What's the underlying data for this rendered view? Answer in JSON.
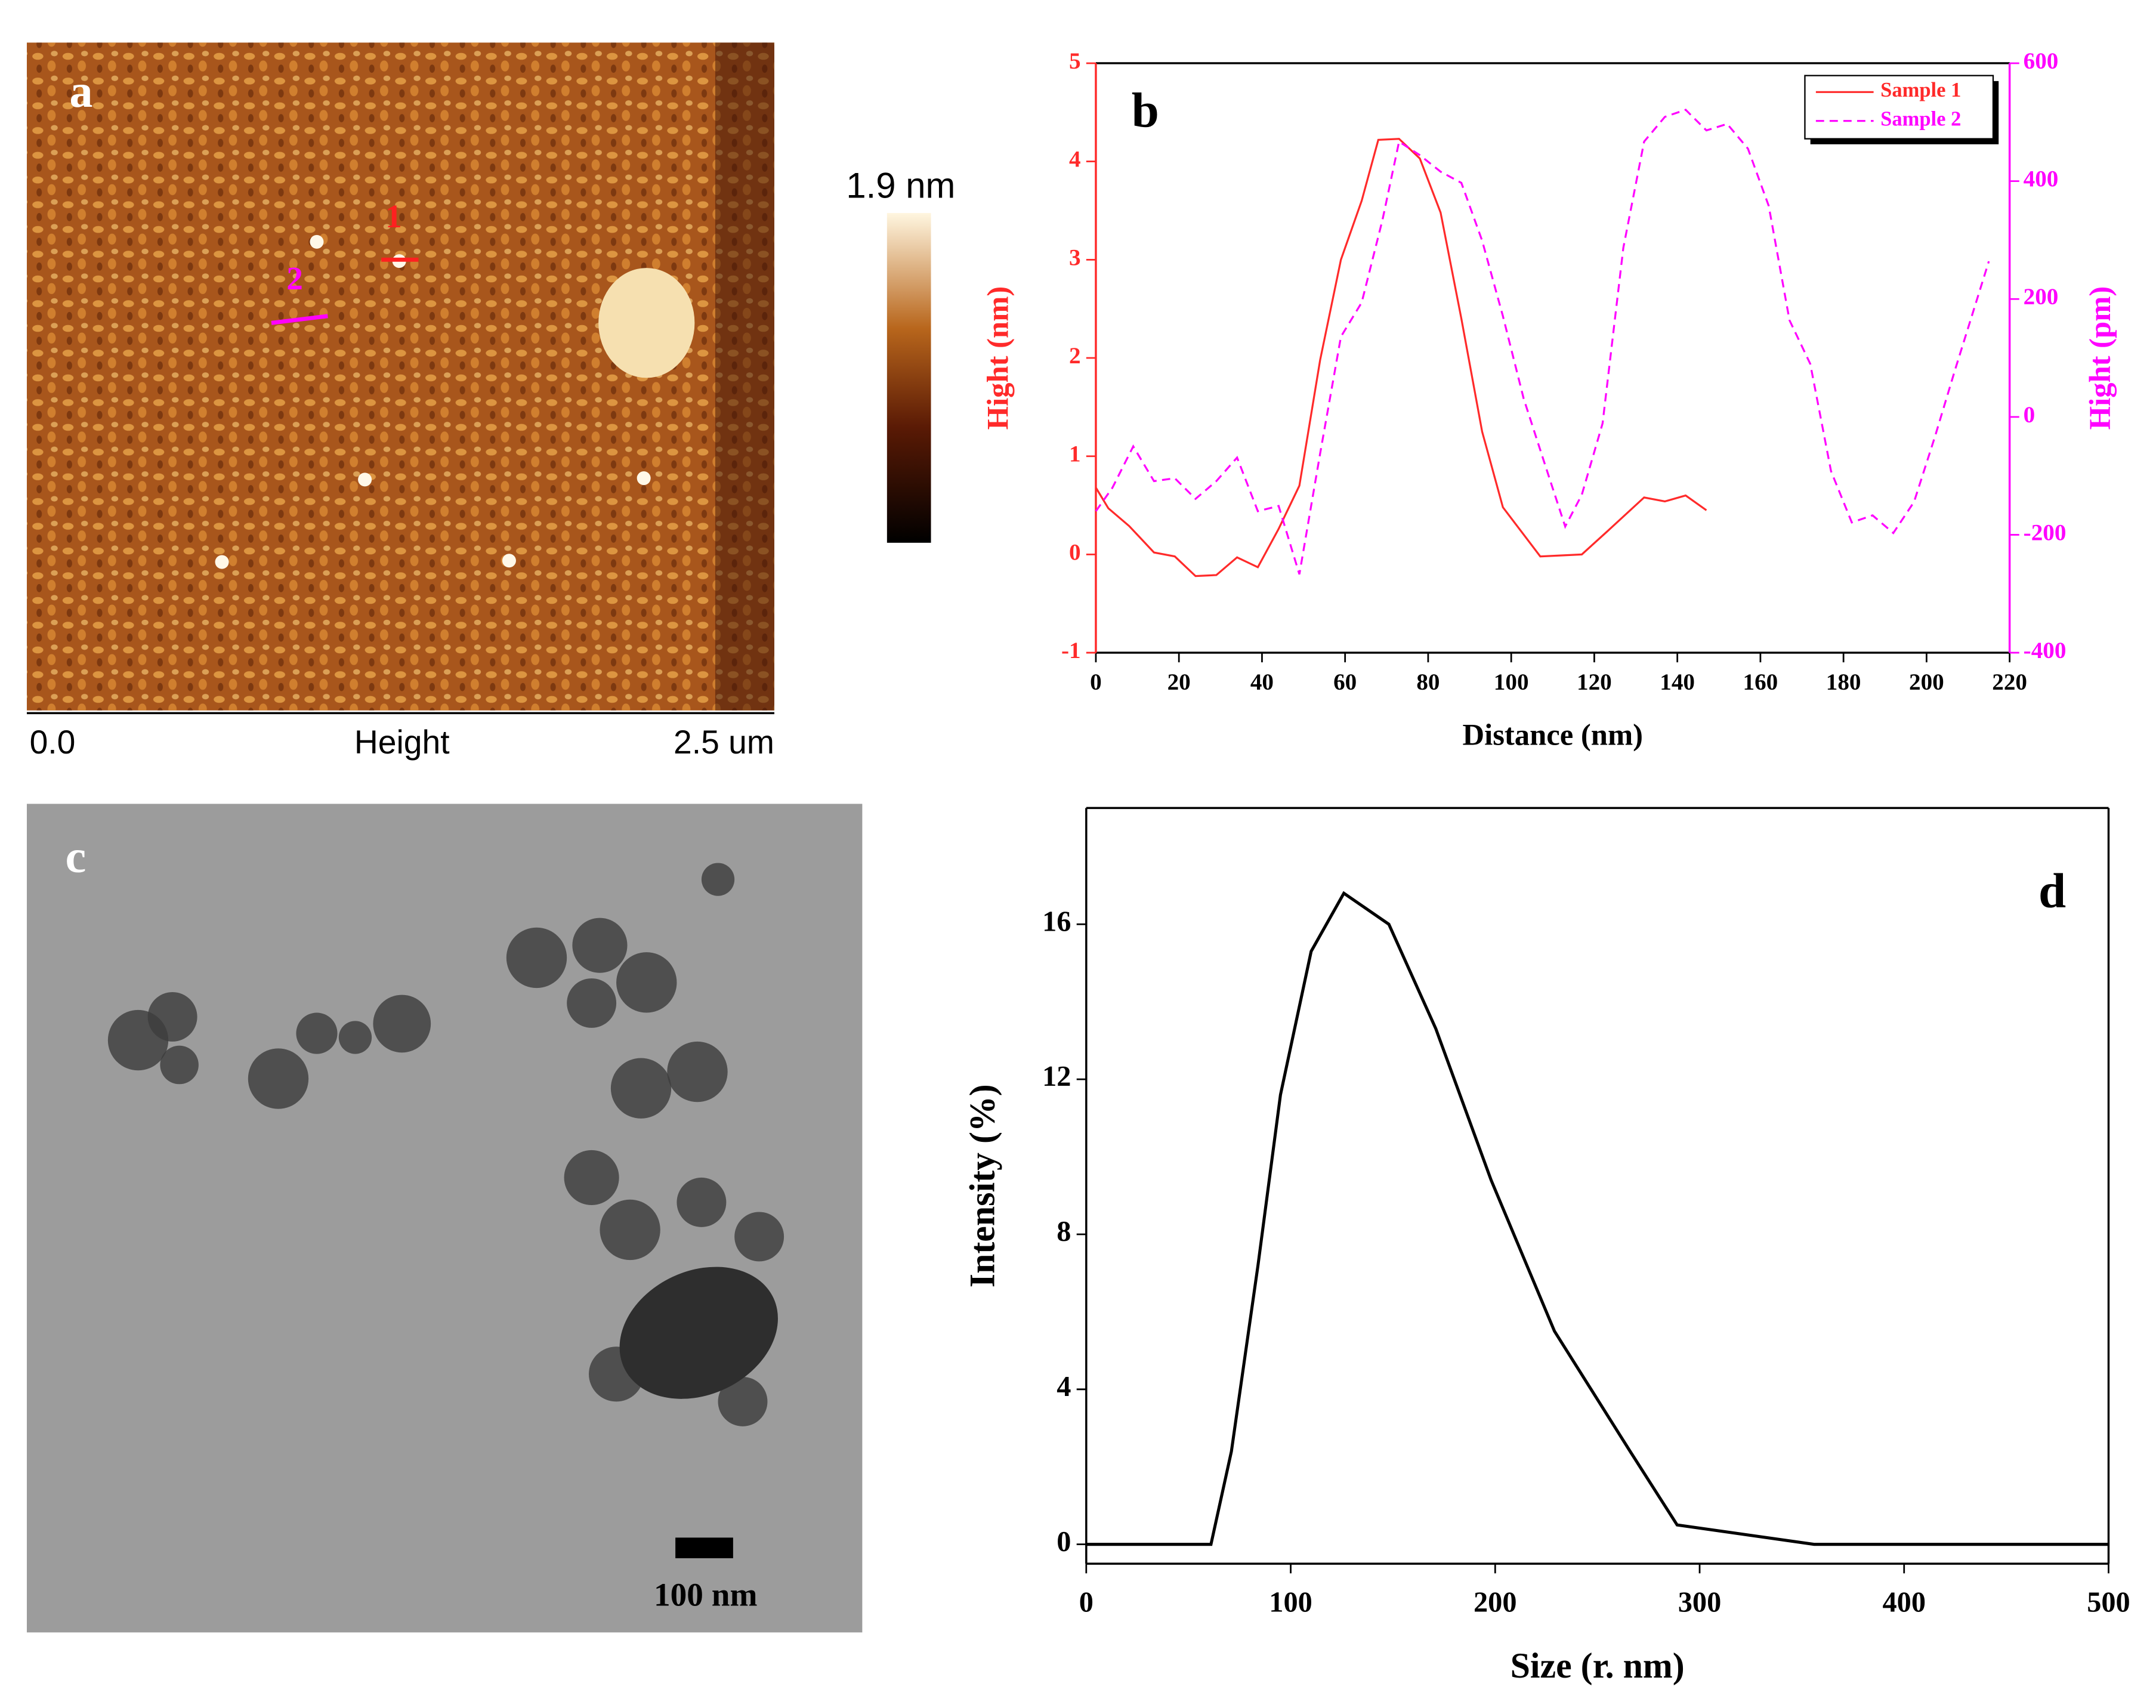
{
  "chart_data": [
    {
      "type": "image",
      "label": "a",
      "color": "#a8561c",
      "annotations": [
        "1",
        "2"
      ],
      "colorbar_label": "1.9 nm",
      "scale_labels": [
        "0.0",
        "Height",
        "2.5 um"
      ]
    },
    {
      "type": "line",
      "label": "b",
      "xlabel": "Distance (nm)",
      "ylabel": "Hight (nm)",
      "y2label": "Hight (pm)",
      "xlim": [
        0,
        220
      ],
      "xticks": [
        0,
        20,
        40,
        60,
        80,
        100,
        120,
        140,
        160,
        180,
        200,
        220
      ],
      "ylim": [
        -1,
        5
      ],
      "yticks": [
        -1,
        0,
        1,
        2,
        3,
        4,
        5
      ],
      "y2lim": [
        -400,
        600
      ],
      "y2ticks": [
        -400,
        -200,
        0,
        200,
        400,
        600
      ],
      "legend": "upper right",
      "series": [
        {
          "name": "Sample 1",
          "color": "#ff2a2a",
          "linestyle": "solid",
          "x": [
            0,
            3,
            8,
            14,
            19,
            24,
            29,
            34,
            39,
            44,
            49,
            54,
            59,
            64,
            68,
            73,
            78,
            83,
            88,
            93,
            98,
            107,
            117,
            123,
            132,
            137,
            142,
            147
          ],
          "values": [
            0.68,
            0.47,
            0.29,
            0.02,
            -0.02,
            -0.22,
            -0.21,
            -0.03,
            -0.13,
            0.26,
            0.7,
            1.98,
            3.0,
            3.6,
            4.22,
            4.23,
            4.03,
            3.48,
            2.4,
            1.25,
            0.48,
            -0.02,
            0.0,
            0.23,
            0.58,
            0.54,
            0.6,
            0.45
          ]
        },
        {
          "name": "Sample 2",
          "color": "#ff00ff",
          "linestyle": "dashed",
          "axis": "y2",
          "x": [
            0,
            4,
            9,
            14,
            19,
            24,
            29,
            34,
            39,
            44,
            49,
            54,
            59,
            64,
            69,
            73,
            78,
            83,
            88,
            93,
            98,
            103,
            108,
            113,
            117,
            122,
            127,
            132,
            137,
            142,
            147,
            152,
            157,
            162,
            167,
            172,
            177,
            182,
            187,
            192,
            197,
            202,
            207,
            215
          ],
          "values": [
            -160,
            -120,
            -50,
            -109,
            -104,
            -139,
            -109,
            -69,
            -160,
            -151,
            -267,
            -62,
            136,
            194,
            334,
            467,
            444,
            416,
            397,
            299,
            171,
            31,
            -78,
            -186,
            -132,
            -11,
            287,
            467,
            509,
            521,
            486,
            497,
            455,
            358,
            164,
            90,
            -92,
            -179,
            -167,
            -197,
            -144,
            -34,
            83,
            264
          ]
        }
      ]
    },
    {
      "type": "image",
      "label": "c",
      "color": "#9c9c9c",
      "scale_bar_label": "100 nm"
    },
    {
      "type": "line",
      "label": "d",
      "xlabel": "Size (r. nm)",
      "ylabel": "Intensity (%)",
      "xlim": [
        0,
        500
      ],
      "xticks": [
        0,
        100,
        200,
        300,
        400,
        500
      ],
      "ylim": [
        -0.5,
        19
      ],
      "yticks": [
        0,
        4,
        8,
        12,
        16
      ],
      "series": [
        {
          "color": "#000000",
          "linestyle": "solid",
          "x": [
            0,
            61,
            71,
            84,
            95,
            110,
            126,
            148,
            171,
            198,
            229,
            266,
            289,
            356,
            500
          ],
          "values": [
            0,
            0,
            2.4,
            7.2,
            11.6,
            15.3,
            16.8,
            16.0,
            13.3,
            9.4,
            5.5,
            2.4,
            0.5,
            0,
            0
          ]
        }
      ]
    }
  ]
}
